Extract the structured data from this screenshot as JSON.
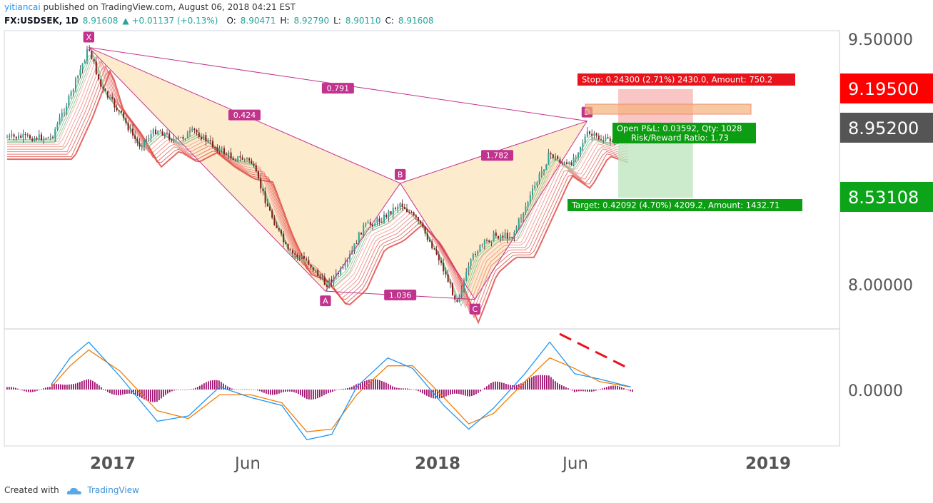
{
  "header": {
    "author": "yitiancai",
    "published_text": "published on TradingView.com, August 06, 2018 04:21 EST",
    "symbol": "FX:USDSEK, 1D",
    "last": "8.91608",
    "change": "+0.01137 (+0.13%)",
    "open_label": "O:",
    "open": "8.90471",
    "high_label": "H:",
    "high": "8.92790",
    "low_label": "L:",
    "low": "8.90110",
    "close_label": "C:",
    "close": "8.91608"
  },
  "footer": {
    "created_with": "Created with",
    "brand": "TradingView"
  },
  "colors": {
    "up": "#26a69a",
    "down": "#8b1a1a",
    "pattern_fill": "#fde8c4",
    "pattern_line": "#c2338e",
    "stop_zone": "#f7b7b7",
    "target_zone": "#bfe6c0",
    "stop_label": "#e8131b",
    "target_label": "#0d9d12",
    "macd_line": "#2196f3",
    "signal_line": "#f57c00",
    "histogram": "#a0136f",
    "divergence": "#e8131b"
  },
  "chart_data": {
    "type": "line",
    "series": [
      {
        "x": [
          "2016-10-24",
          "2016-11-14",
          "2016-12-05",
          "2016-12-19",
          "2017-01-09",
          "2017-01-30",
          "2017-02-20",
          "2017-03-13",
          "2017-04-03",
          "2017-04-24",
          "2017-05-15",
          "2017-06-05",
          "2017-06-26",
          "2017-07-17",
          "2017-08-07",
          "2017-08-28",
          "2017-09-18",
          "2017-10-09",
          "2017-10-30",
          "2017-11-20",
          "2017-12-11",
          "2018-01-01",
          "2018-01-22",
          "2018-02-12",
          "2018-03-05",
          "2018-03-26",
          "2018-04-16",
          "2018-05-07",
          "2018-05-28",
          "2018-06-18",
          "2018-07-09",
          "2018-08-06"
        ],
        "values": [
          8.9,
          9.15,
          9.45,
          9.2,
          9.05,
          8.85,
          8.95,
          8.88,
          8.94,
          8.85,
          8.78,
          8.76,
          8.45,
          8.2,
          8.15,
          8.0,
          8.1,
          8.35,
          8.4,
          8.5,
          8.38,
          8.18,
          7.9,
          8.2,
          8.3,
          8.3,
          8.55,
          8.8,
          8.72,
          8.92,
          8.88,
          8.92
        ]
      }
    ],
    "y_axis": {
      "ticks": [
        "9.50000",
        "8.00000"
      ],
      "ylim": [
        7.7,
        9.6
      ]
    },
    "x_axis": {
      "ticks": [
        "2017",
        "Jun",
        "2018",
        "Jun",
        "2019"
      ]
    },
    "pattern": {
      "points": [
        {
          "label": "X",
          "x": "2016-12-05",
          "y": 9.45
        },
        {
          "label": "A",
          "x": "2017-08-28",
          "y": 7.96
        },
        {
          "label": "B",
          "x": "2017-11-20",
          "y": 8.62
        },
        {
          "label": "C",
          "x": "2018-02-12",
          "y": 7.91
        },
        {
          "label": "D",
          "x": "2018-06-18",
          "y": 9.0
        }
      ],
      "ratios": [
        "0.791",
        "0.424",
        "1.036",
        "1.782"
      ]
    },
    "position": {
      "stop_label": "Stop: 0.24300 (2.71%) 2430.0, Amount: 750.2",
      "target_label": "Target: 0.42092 (4.70%) 4209.2, Amount: 1432.71",
      "pnl_label": "Open P&L: 0.03592, Qty: 1028",
      "rr_label": "Risk/Reward Ratio: 1.73",
      "stop_price": "9.19500",
      "entry_price": "8.95200",
      "target_price": "8.53108",
      "zone_start": "2018-07-23",
      "zone_end": "2018-10-15"
    },
    "macd": {
      "zero_label": "0.0000",
      "x": [
        "2016-10-24",
        "2016-11-14",
        "2016-12-05",
        "2017-01-09",
        "2017-02-20",
        "2017-03-27",
        "2017-05-01",
        "2017-06-05",
        "2017-07-10",
        "2017-08-07",
        "2017-09-04",
        "2017-10-02",
        "2017-11-06",
        "2017-12-04",
        "2018-01-08",
        "2018-02-05",
        "2018-03-05",
        "2018-04-09",
        "2018-05-07",
        "2018-06-04",
        "2018-07-02",
        "2018-08-06"
      ],
      "macd": [
        0.02,
        0.12,
        0.18,
        0.05,
        -0.12,
        -0.1,
        0.01,
        -0.03,
        -0.06,
        -0.19,
        -0.17,
        0.01,
        0.12,
        0.08,
        -0.06,
        -0.15,
        -0.07,
        0.06,
        0.18,
        0.06,
        0.04,
        0.01
      ],
      "signal": [
        0.01,
        0.09,
        0.15,
        0.07,
        -0.08,
        -0.11,
        -0.02,
        -0.02,
        -0.05,
        -0.16,
        -0.15,
        -0.02,
        0.09,
        0.09,
        -0.03,
        -0.13,
        -0.09,
        0.03,
        0.12,
        0.08,
        0.03,
        0.01
      ]
    }
  }
}
